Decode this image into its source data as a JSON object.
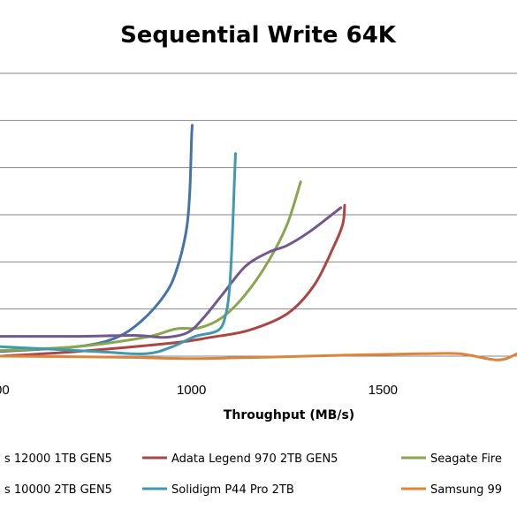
{
  "chart_data": {
    "type": "line",
    "title": "Sequential Write 64K",
    "xlabel": "Throughput (MB/s)",
    "ylabel": "",
    "xlim": [
      500,
      1850
    ],
    "ylim": [
      0,
      6
    ],
    "x_ticks": [
      "1000",
      "1500"
    ],
    "grid": "horizontal",
    "legend_position": "bottom",
    "colors": {
      "blue": "#4572a7",
      "red": "#aa4643",
      "green": "#89a54e",
      "purple": "#71588f",
      "teal": "#4198af",
      "orange": "#db843d"
    },
    "legend": [
      {
        "label": "s 12000 1TB GEN5",
        "color": "#4572a7"
      },
      {
        "label": "Adata Legend 970 2TB GEN5",
        "color": "#aa4643"
      },
      {
        "label": "Seagate Fire",
        "color": "#89a54e"
      },
      {
        "label": "s 10000 2TB GEN5",
        "color": "#71588f"
      },
      {
        "label": "Solidigm P44 Pro 2TB",
        "color": "#4198af"
      },
      {
        "label": "Samsung 99",
        "color": "#db843d"
      }
    ],
    "series": [
      {
        "name": "s 12000 1TB GEN5",
        "color": "#4572a7",
        "points": [
          [
            500,
            0.1
          ],
          [
            700,
            0.2
          ],
          [
            800,
            0.38
          ],
          [
            870,
            0.75
          ],
          [
            930,
            1.3
          ],
          [
            960,
            1.8
          ],
          [
            985,
            2.6
          ],
          [
            995,
            3.4
          ],
          [
            1000,
            4.6
          ],
          [
            1002,
            4.9
          ]
        ]
      },
      {
        "name": "Adata Legend 970 2TB GEN5",
        "color": "#aa4643",
        "points": [
          [
            500,
            0.0
          ],
          [
            700,
            0.1
          ],
          [
            950,
            0.28
          ],
          [
            1050,
            0.4
          ],
          [
            1150,
            0.55
          ],
          [
            1250,
            0.9
          ],
          [
            1320,
            1.5
          ],
          [
            1370,
            2.3
          ],
          [
            1395,
            2.8
          ],
          [
            1400,
            3.2
          ]
        ]
      },
      {
        "name": "Seagate Fire",
        "color": "#89a54e",
        "points": [
          [
            500,
            0.12
          ],
          [
            700,
            0.2
          ],
          [
            880,
            0.4
          ],
          [
            960,
            0.58
          ],
          [
            1020,
            0.6
          ],
          [
            1080,
            0.82
          ],
          [
            1140,
            1.3
          ],
          [
            1200,
            2.0
          ],
          [
            1250,
            2.8
          ],
          [
            1285,
            3.7
          ]
        ]
      },
      {
        "name": "s 10000 2TB GEN5",
        "color": "#71588f",
        "points": [
          [
            500,
            0.42
          ],
          [
            700,
            0.42
          ],
          [
            850,
            0.44
          ],
          [
            930,
            0.4
          ],
          [
            990,
            0.5
          ],
          [
            1030,
            0.8
          ],
          [
            1080,
            1.3
          ],
          [
            1140,
            1.9
          ],
          [
            1200,
            2.2
          ],
          [
            1250,
            2.35
          ],
          [
            1310,
            2.65
          ],
          [
            1390,
            3.15
          ]
        ]
      },
      {
        "name": "Solidigm P44 Pro 2TB",
        "color": "#4198af",
        "points": [
          [
            500,
            0.2
          ],
          [
            750,
            0.1
          ],
          [
            880,
            0.05
          ],
          [
            950,
            0.2
          ],
          [
            1010,
            0.42
          ],
          [
            1070,
            0.55
          ],
          [
            1090,
            0.9
          ],
          [
            1100,
            1.5
          ],
          [
            1107,
            2.6
          ],
          [
            1112,
            3.7
          ],
          [
            1115,
            4.3
          ]
        ]
      },
      {
        "name": "Samsung 99",
        "color": "#db843d",
        "points": [
          [
            500,
            0.0
          ],
          [
            800,
            -0.02
          ],
          [
            1000,
            -0.05
          ],
          [
            1200,
            -0.02
          ],
          [
            1400,
            0.02
          ],
          [
            1600,
            0.05
          ],
          [
            1700,
            0.05
          ],
          [
            1800,
            -0.08
          ],
          [
            1850,
            0.05
          ]
        ]
      }
    ]
  }
}
